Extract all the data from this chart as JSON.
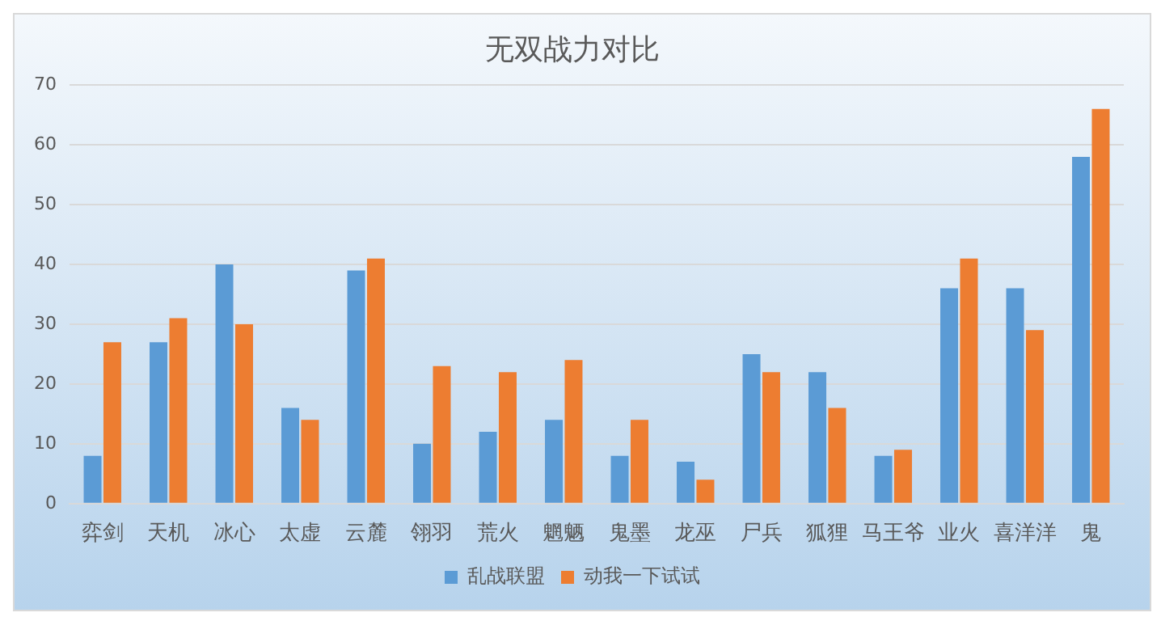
{
  "chart_data": {
    "type": "bar",
    "title": "无双战力对比",
    "categories": [
      "弈剑",
      "天机",
      "冰心",
      "太虚",
      "云麓",
      "翎羽",
      "荒火",
      "魍魉",
      "鬼墨",
      "龙巫",
      "尸兵",
      "狐狸",
      "马王爷",
      "业火",
      "喜洋洋",
      "鬼"
    ],
    "series": [
      {
        "name": "乱战联盟",
        "color": "#5b9bd5",
        "values": [
          8,
          27,
          40,
          16,
          39,
          10,
          12,
          14,
          8,
          7,
          25,
          22,
          8,
          36,
          36,
          58
        ]
      },
      {
        "name": "动我一下试试",
        "color": "#ed7d31",
        "values": [
          27,
          31,
          30,
          14,
          41,
          23,
          22,
          24,
          14,
          4,
          22,
          16,
          9,
          41,
          29,
          66
        ]
      }
    ],
    "ylim": [
      0,
      70
    ],
    "yticks": [
      0,
      10,
      20,
      30,
      40,
      50,
      60,
      70
    ],
    "grid": "y",
    "legend": "bottom"
  }
}
